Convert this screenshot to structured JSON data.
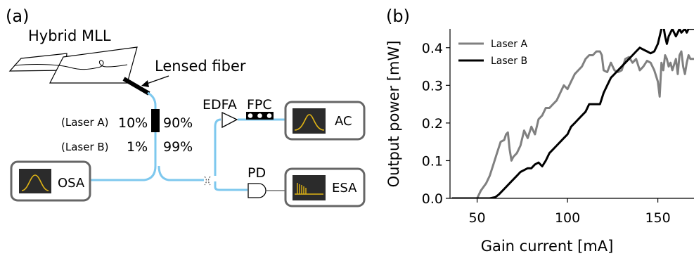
{
  "panel_a": {
    "label": "(a)",
    "chip_title": "Hybrid MLL",
    "lensed_fiber_label": "Lensed fiber",
    "edfa_label": "EDFA",
    "fpc_label": "FPC",
    "pd_label": "PD",
    "osa_label": "OSA",
    "ac_label": "AC",
    "esa_label": "ESA",
    "laser_a_label": "(Laser A)",
    "laser_a_split_left": "10%",
    "laser_a_split_right": "90%",
    "laser_b_label": "(Laser B)",
    "laser_b_split_left": "1%",
    "laser_b_split_right": "99%",
    "colors": {
      "fiber": "#7ec8ee",
      "trace": "#e0b414",
      "screen": "#2b2b2b",
      "box": "#666666"
    }
  },
  "panel_b": {
    "label": "(b)"
  },
  "chart_data": {
    "type": "line",
    "xlabel": "Gain current [mA]",
    "ylabel": "Output power [mW]",
    "xlim": [
      35,
      170
    ],
    "ylim": [
      0,
      0.45
    ],
    "xticks": [
      50,
      100,
      150
    ],
    "yticks": [
      0.0,
      0.1,
      0.2,
      0.3,
      0.4
    ],
    "xtick_labels": [
      "50",
      "100",
      "150"
    ],
    "ytick_labels": [
      "0.0",
      "0.1",
      "0.2",
      "0.3",
      "0.4"
    ],
    "legend": "top-left",
    "grid": false,
    "series": [
      {
        "name": "Laser A",
        "color": "#808080",
        "x": [
          36,
          50,
          52,
          55,
          57,
          59,
          61,
          63,
          65,
          66,
          67,
          68,
          69,
          70,
          72,
          74,
          76,
          78,
          80,
          82,
          84,
          86,
          88,
          90,
          92,
          94,
          96,
          98,
          100,
          102,
          104,
          106,
          108,
          110,
          112,
          114,
          116,
          118,
          119,
          120,
          122,
          124,
          126,
          128,
          130,
          132,
          134,
          136,
          138,
          140,
          142,
          144,
          146,
          148,
          150,
          151,
          152,
          153,
          154,
          155,
          156,
          157,
          158,
          159,
          160,
          161,
          162,
          163,
          164,
          165,
          166,
          167,
          168,
          170
        ],
        "y": [
          0.0,
          0.0,
          0.02,
          0.04,
          0.06,
          0.09,
          0.12,
          0.15,
          0.155,
          0.17,
          0.175,
          0.13,
          0.1,
          0.11,
          0.12,
          0.14,
          0.18,
          0.16,
          0.19,
          0.17,
          0.21,
          0.22,
          0.24,
          0.24,
          0.25,
          0.26,
          0.28,
          0.3,
          0.29,
          0.31,
          0.33,
          0.34,
          0.35,
          0.37,
          0.38,
          0.38,
          0.39,
          0.39,
          0.38,
          0.34,
          0.335,
          0.36,
          0.34,
          0.335,
          0.34,
          0.37,
          0.375,
          0.36,
          0.37,
          0.34,
          0.35,
          0.365,
          0.36,
          0.34,
          0.31,
          0.27,
          0.36,
          0.34,
          0.38,
          0.37,
          0.35,
          0.36,
          0.34,
          0.355,
          0.37,
          0.33,
          0.38,
          0.39,
          0.35,
          0.33,
          0.36,
          0.38,
          0.37,
          0.37
        ]
      },
      {
        "name": "Laser B",
        "color": "#000000",
        "x": [
          36,
          57,
          60,
          62,
          64,
          66,
          68,
          70,
          72,
          74,
          76,
          78,
          80,
          82,
          84,
          86,
          88,
          90,
          92,
          94,
          96,
          98,
          100,
          102,
          104,
          106,
          108,
          110,
          112,
          114,
          116,
          118,
          120,
          122,
          124,
          126,
          128,
          130,
          132,
          134,
          136,
          138,
          140,
          142,
          144,
          146,
          148,
          150,
          152,
          153,
          154,
          155,
          156,
          157,
          158,
          159,
          160,
          161,
          162,
          163,
          164,
          165,
          166,
          167,
          168,
          170
        ],
        "y": [
          0.0,
          0.0,
          0.003,
          0.01,
          0.02,
          0.03,
          0.04,
          0.05,
          0.06,
          0.07,
          0.075,
          0.08,
          0.08,
          0.09,
          0.095,
          0.085,
          0.1,
          0.12,
          0.13,
          0.14,
          0.15,
          0.16,
          0.17,
          0.19,
          0.2,
          0.21,
          0.22,
          0.23,
          0.25,
          0.25,
          0.25,
          0.25,
          0.28,
          0.3,
          0.32,
          0.33,
          0.34,
          0.35,
          0.36,
          0.37,
          0.38,
          0.39,
          0.4,
          0.395,
          0.39,
          0.385,
          0.39,
          0.41,
          0.45,
          0.46,
          0.43,
          0.41,
          0.43,
          0.44,
          0.45,
          0.44,
          0.43,
          0.44,
          0.45,
          0.44,
          0.445,
          0.45,
          0.44,
          0.45,
          0.45,
          0.45
        ]
      }
    ]
  }
}
